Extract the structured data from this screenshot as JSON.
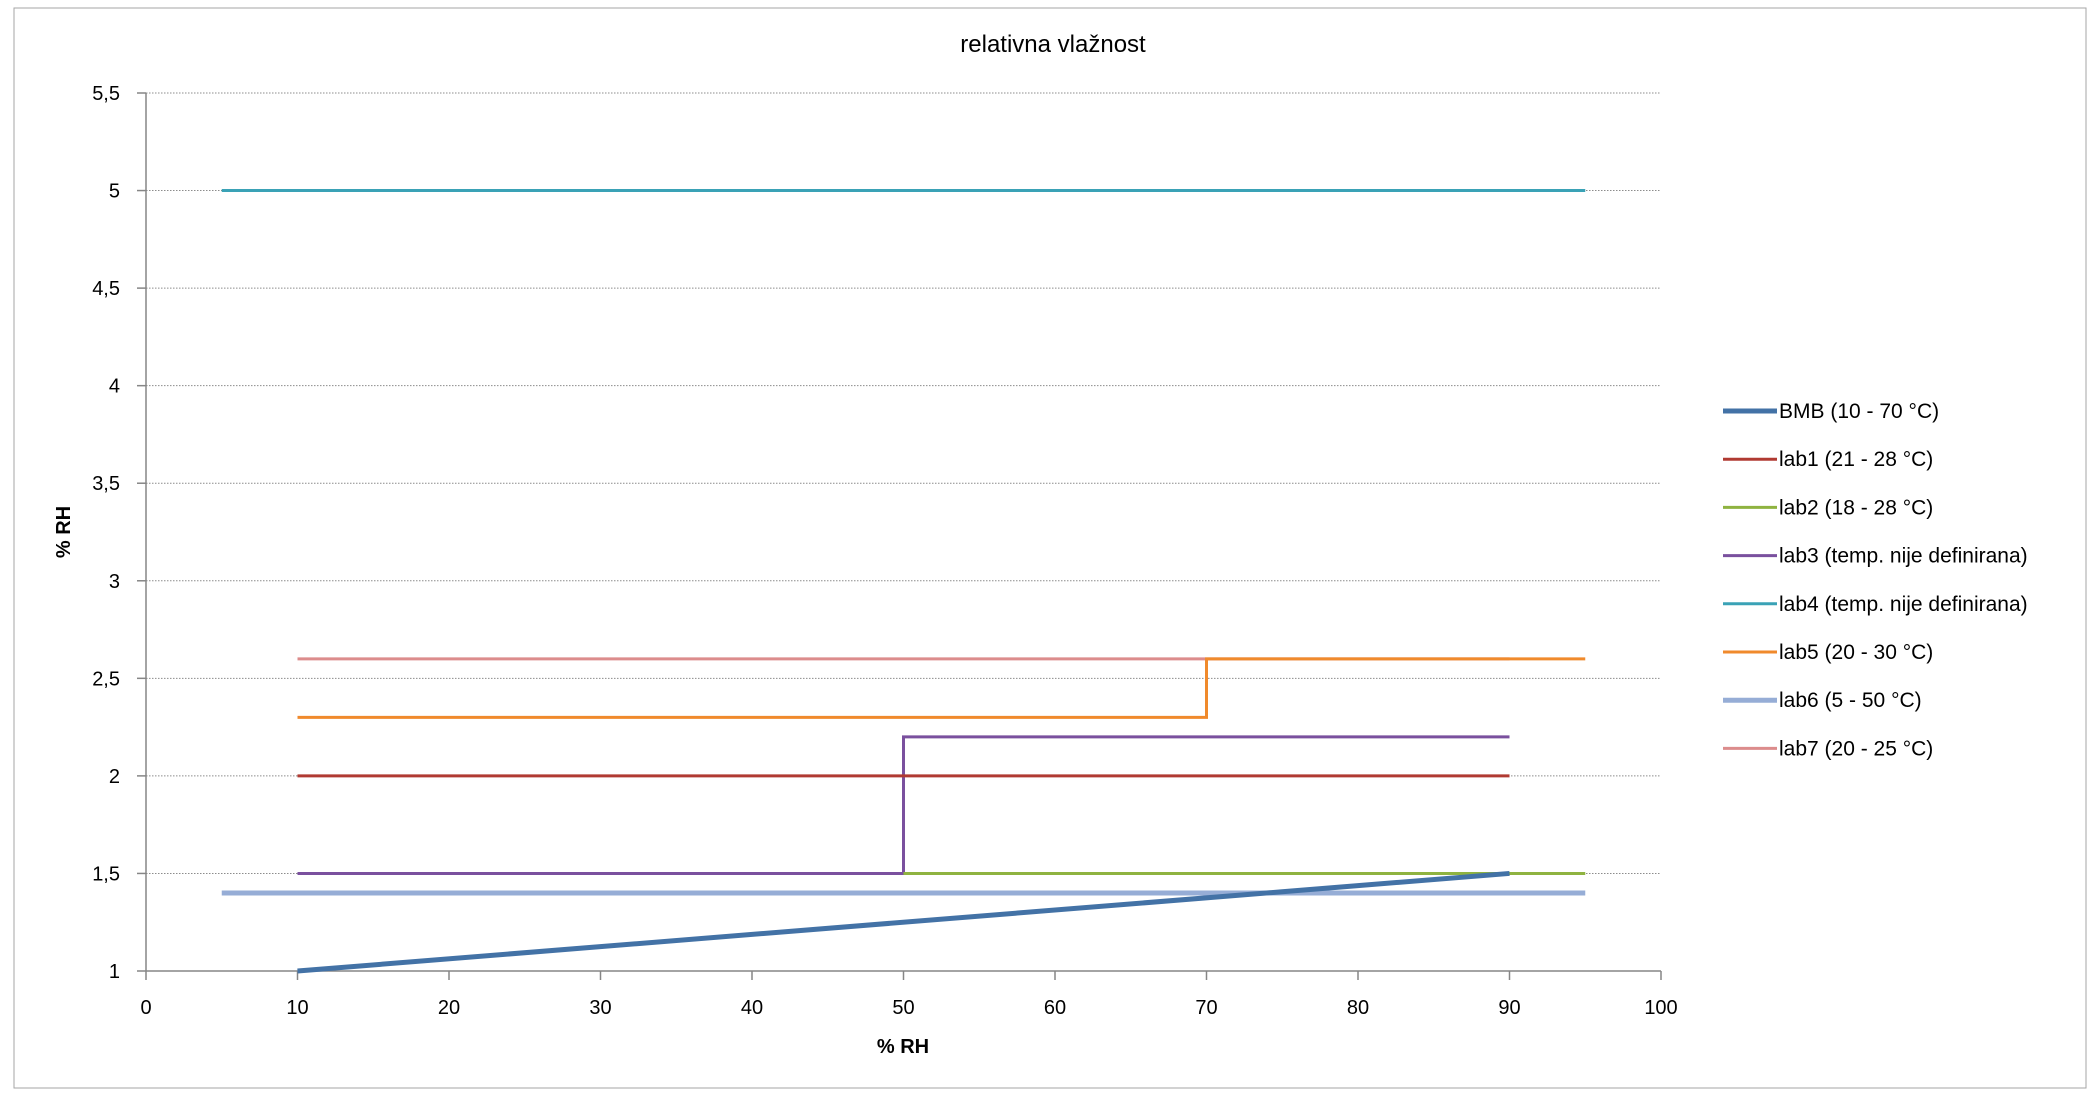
{
  "chart_data": {
    "type": "line",
    "title": "relativna vlažnost",
    "xlabel": "% RH",
    "ylabel": "% RH",
    "xlim": [
      0,
      100
    ],
    "ylim": [
      1,
      5.5
    ],
    "x_ticks": [
      0,
      10,
      20,
      30,
      40,
      50,
      60,
      70,
      80,
      90,
      100
    ],
    "y_ticks": [
      1,
      1.5,
      2,
      2.5,
      3,
      3.5,
      4,
      4.5,
      5,
      5.5
    ],
    "x_tick_labels": [
      "0",
      "10",
      "20",
      "30",
      "40",
      "50",
      "60",
      "70",
      "80",
      "90",
      "100"
    ],
    "y_tick_labels": [
      "1",
      "1,5",
      "2",
      "2,5",
      "3",
      "3,5",
      "4",
      "4,5",
      "5",
      "5,5"
    ],
    "grid": "horizontal-dotted",
    "legend_position": "right",
    "series": [
      {
        "name": "BMB (10 - 70 °C)",
        "color": "#4372A6",
        "width": "thick",
        "x": [
          10,
          90
        ],
        "y": [
          1,
          1.5
        ]
      },
      {
        "name": "lab1 (21 - 28 °C)",
        "color": "#B03A32",
        "width": "normal",
        "x": [
          10,
          90
        ],
        "y": [
          2,
          2
        ]
      },
      {
        "name": "lab2 (18 - 28 °C)",
        "color": "#8FB340",
        "width": "normal",
        "x": [
          50,
          95
        ],
        "y": [
          1.5,
          1.5
        ]
      },
      {
        "name": "lab3 (temp. nije definirana)",
        "color": "#7A509E",
        "width": "normal",
        "x": [
          10,
          50,
          50,
          90
        ],
        "y": [
          1.5,
          1.5,
          2.2,
          2.2
        ]
      },
      {
        "name": "lab4 (temp. nije definirana)",
        "color": "#3AA2B6",
        "width": "normal",
        "x": [
          5,
          95
        ],
        "y": [
          5,
          5
        ]
      },
      {
        "name": "lab5 (20 - 30 °C)",
        "color": "#F08A2C",
        "width": "normal",
        "x": [
          10,
          70,
          70,
          95
        ],
        "y": [
          2.3,
          2.3,
          2.6,
          2.6
        ]
      },
      {
        "name": "lab6 (5 - 50 °C)",
        "color": "#96ADD6",
        "width": "thick",
        "x": [
          5,
          95
        ],
        "y": [
          1.4,
          1.4
        ]
      },
      {
        "name": "lab7 (20 - 25 °C)",
        "color": "#DC8C8C",
        "width": "normal",
        "x": [
          10,
          90
        ],
        "y": [
          2.6,
          2.6
        ]
      }
    ]
  }
}
